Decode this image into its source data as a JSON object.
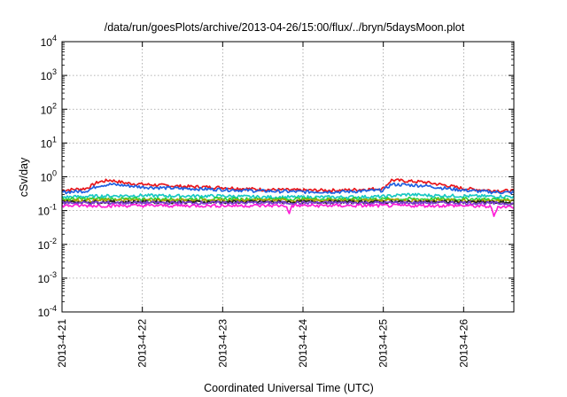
{
  "chart_data": {
    "type": "line",
    "title": "/data/run/goesPlots/archive/2013-04-26/15:00/flux/../bryn/5daysMoon.plot",
    "xlabel": "Coordinated Universal Time (UTC)",
    "ylabel": "cSv/day",
    "yscale": "log",
    "ylim": [
      0.0001,
      10000
    ],
    "xlim": [
      "2013-04-21 00:00",
      "2013-04-26 15:00"
    ],
    "x_ticks": [
      "2013-4-21",
      "2013-4-22",
      "2013-4-23",
      "2013-4-24",
      "2013-4-25",
      "2013-4-26"
    ],
    "y_ticks": [
      {
        "base": "10",
        "exp": "-4"
      },
      {
        "base": "10",
        "exp": "-3"
      },
      {
        "base": "10",
        "exp": "-2"
      },
      {
        "base": "10",
        "exp": "-1"
      },
      {
        "base": "10",
        "exp": "0"
      },
      {
        "base": "10",
        "exp": "1"
      },
      {
        "base": "10",
        "exp": "2"
      },
      {
        "base": "10",
        "exp": "3"
      },
      {
        "base": "10",
        "exp": "4"
      }
    ],
    "grid": true,
    "legend": "none",
    "series": [
      {
        "color": "#e8161b",
        "keys": [
          [
            0,
            0.4
          ],
          [
            0.3,
            0.45
          ],
          [
            0.45,
            0.7
          ],
          [
            0.6,
            0.8
          ],
          [
            0.8,
            0.65
          ],
          [
            1,
            0.6
          ],
          [
            1.5,
            0.52
          ],
          [
            2,
            0.48
          ],
          [
            2.5,
            0.42
          ],
          [
            3,
            0.4
          ],
          [
            3.5,
            0.4
          ],
          [
            4,
            0.45
          ],
          [
            4.1,
            0.8
          ],
          [
            4.5,
            0.7
          ],
          [
            4.8,
            0.55
          ],
          [
            5,
            0.45
          ],
          [
            5.3,
            0.4
          ],
          [
            5.625,
            0.38
          ]
        ]
      },
      {
        "color": "#1f5fe0",
        "keys": [
          [
            0,
            0.35
          ],
          [
            0.3,
            0.38
          ],
          [
            0.45,
            0.55
          ],
          [
            0.6,
            0.6
          ],
          [
            0.8,
            0.55
          ],
          [
            1,
            0.5
          ],
          [
            1.5,
            0.45
          ],
          [
            2,
            0.42
          ],
          [
            2.5,
            0.38
          ],
          [
            3,
            0.36
          ],
          [
            3.5,
            0.36
          ],
          [
            4,
            0.4
          ],
          [
            4.1,
            0.6
          ],
          [
            4.5,
            0.55
          ],
          [
            4.8,
            0.45
          ],
          [
            5,
            0.4
          ],
          [
            5.3,
            0.36
          ],
          [
            5.625,
            0.34
          ]
        ]
      },
      {
        "color": "#19c8c3",
        "keys": [
          [
            0,
            0.25
          ],
          [
            0.5,
            0.27
          ],
          [
            1,
            0.28
          ],
          [
            1.5,
            0.27
          ],
          [
            2,
            0.27
          ],
          [
            2.5,
            0.25
          ],
          [
            3,
            0.25
          ],
          [
            3.5,
            0.25
          ],
          [
            4,
            0.26
          ],
          [
            4.3,
            0.3
          ],
          [
            4.6,
            0.28
          ],
          [
            5,
            0.27
          ],
          [
            5.625,
            0.26
          ]
        ]
      },
      {
        "color": "#2fd03a",
        "keys": [
          [
            0,
            0.22
          ],
          [
            1,
            0.22
          ],
          [
            2,
            0.22
          ],
          [
            3,
            0.22
          ],
          [
            4,
            0.22
          ],
          [
            5,
            0.22
          ],
          [
            5.625,
            0.21
          ]
        ]
      },
      {
        "color": "#b0a000",
        "keys": [
          [
            0,
            0.2
          ],
          [
            1,
            0.2
          ],
          [
            2,
            0.2
          ],
          [
            3,
            0.2
          ],
          [
            4,
            0.2
          ],
          [
            5,
            0.2
          ],
          [
            5.625,
            0.19
          ]
        ]
      },
      {
        "color": "#222222",
        "keys": [
          [
            0,
            0.18
          ],
          [
            1,
            0.18
          ],
          [
            2,
            0.18
          ],
          [
            3,
            0.18
          ],
          [
            4,
            0.18
          ],
          [
            5,
            0.18
          ],
          [
            5.625,
            0.17
          ]
        ]
      },
      {
        "color": "#7a3fd0",
        "keys": [
          [
            0,
            0.17
          ],
          [
            1,
            0.17
          ],
          [
            2,
            0.17
          ],
          [
            3,
            0.17
          ],
          [
            4,
            0.17
          ],
          [
            5,
            0.17
          ],
          [
            5.625,
            0.16
          ]
        ]
      },
      {
        "color": "#ff1fd8",
        "keys": [
          [
            0,
            0.14
          ],
          [
            1,
            0.14
          ],
          [
            2,
            0.14
          ],
          [
            2.8,
            0.14
          ],
          [
            2.82,
            0.07
          ],
          [
            2.86,
            0.14
          ],
          [
            3,
            0.14
          ],
          [
            4,
            0.14
          ],
          [
            5,
            0.14
          ],
          [
            5.35,
            0.13
          ],
          [
            5.37,
            0.06
          ],
          [
            5.42,
            0.13
          ],
          [
            5.625,
            0.13
          ]
        ]
      }
    ]
  }
}
